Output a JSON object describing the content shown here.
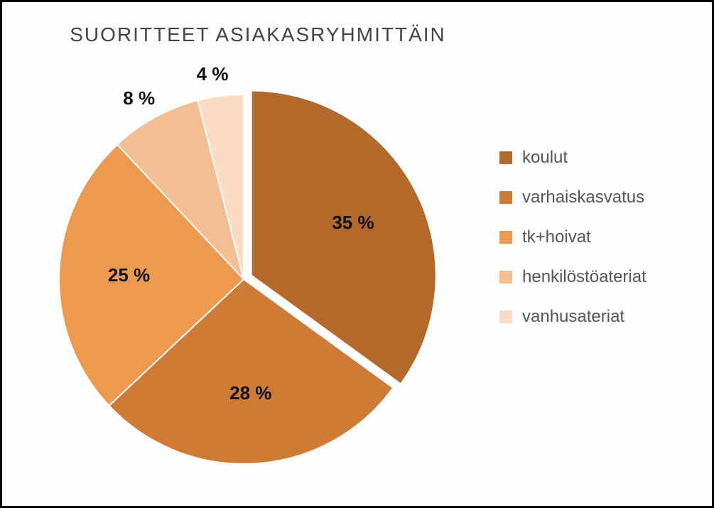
{
  "chart": {
    "type": "pie",
    "title": "SUORITTEET  ASIAKASRYHMITTÄIN",
    "title_fontsize": 28,
    "title_color": "#444444",
    "background_color": "#fefefe",
    "border_color": "#000000",
    "pie_radius": 260,
    "start_angle_deg": -90,
    "direction": "clockwise",
    "outline_color": "#ffffff",
    "outline_width": 2,
    "slices": [
      {
        "name": "koulut",
        "value": 35,
        "label": "35 %",
        "color": "#b4682a",
        "explode": 12
      },
      {
        "name": "varhaiskasvatus",
        "value": 28,
        "label": "28 %",
        "color": "#cf7b36",
        "explode": 0
      },
      {
        "name": "tk+hoivat",
        "value": 25,
        "label": "25 %",
        "color": "#ed9a4f",
        "explode": 0
      },
      {
        "name": "henkilöstöateriat",
        "value": 8,
        "label": "8 %",
        "color": "#f4bd92",
        "explode": 0
      },
      {
        "name": "vanhusateriat",
        "value": 4,
        "label": "4 %",
        "color": "#fadcc3",
        "explode": 0
      }
    ],
    "label_fontsize": 26,
    "label_fontweight": "bold",
    "label_color": "#111111",
    "legend": {
      "fontsize": 24,
      "color": "#555555",
      "swatch_size": 18
    }
  }
}
